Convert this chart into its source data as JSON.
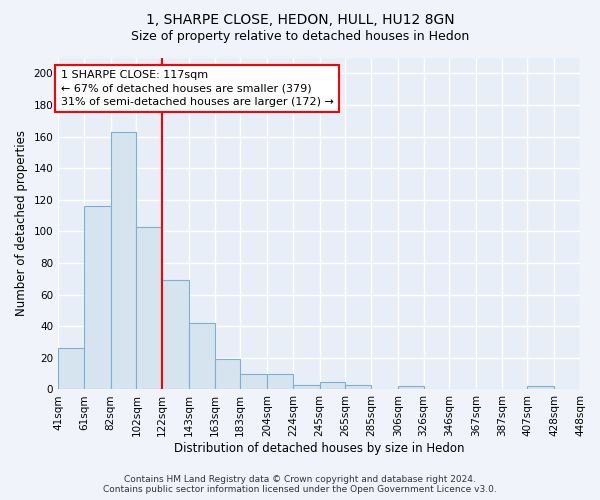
{
  "title": "1, SHARPE CLOSE, HEDON, HULL, HU12 8GN",
  "subtitle": "Size of property relative to detached houses in Hedon",
  "xlabel": "Distribution of detached houses by size in Hedon",
  "ylabel": "Number of detached properties",
  "bar_edges": [
    41,
    61,
    82,
    102,
    122,
    143,
    163,
    183,
    204,
    224,
    245,
    265,
    285,
    306,
    326,
    346,
    367,
    387,
    407,
    428,
    448
  ],
  "bar_heights": [
    26,
    116,
    163,
    103,
    69,
    42,
    19,
    10,
    10,
    3,
    5,
    3,
    0,
    2,
    0,
    0,
    0,
    0,
    2,
    0
  ],
  "bar_color": "#d6e4f0",
  "bar_edge_color": "#7bafd4",
  "vline_x": 122,
  "vline_color": "red",
  "annotation_text": "1 SHARPE CLOSE: 117sqm\n← 67% of detached houses are smaller (379)\n31% of semi-detached houses are larger (172) →",
  "annotation_box_color": "white",
  "annotation_box_edge": "red",
  "ylim": [
    0,
    210
  ],
  "yticks": [
    0,
    20,
    40,
    60,
    80,
    100,
    120,
    140,
    160,
    180,
    200
  ],
  "tick_labels": [
    "41sqm",
    "61sqm",
    "82sqm",
    "102sqm",
    "122sqm",
    "143sqm",
    "163sqm",
    "183sqm",
    "204sqm",
    "224sqm",
    "245sqm",
    "265sqm",
    "285sqm",
    "306sqm",
    "326sqm",
    "346sqm",
    "367sqm",
    "387sqm",
    "407sqm",
    "428sqm",
    "448sqm"
  ],
  "footer_text": "Contains HM Land Registry data © Crown copyright and database right 2024.\nContains public sector information licensed under the Open Government Licence v3.0.",
  "bg_color": "#f0f4fa",
  "plot_bg_color": "#e8eef8",
  "grid_color": "#ffffff",
  "title_fontsize": 10,
  "subtitle_fontsize": 9,
  "axis_label_fontsize": 8.5,
  "tick_fontsize": 7.5,
  "footer_fontsize": 6.5,
  "annotation_fontsize": 8
}
